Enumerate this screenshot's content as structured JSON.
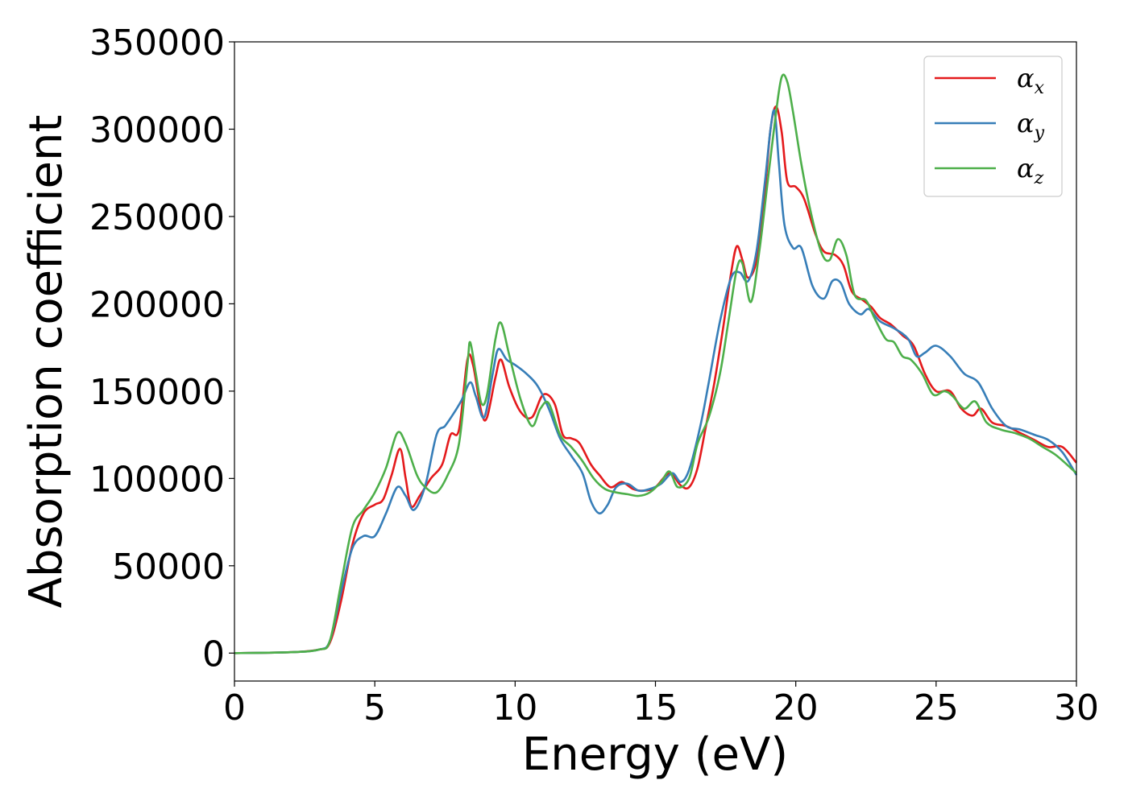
{
  "chart_data": {
    "type": "line",
    "title": "",
    "xlabel": "Energy (eV)",
    "ylabel": "Absorption coefficient",
    "xlim": [
      0,
      30
    ],
    "ylim": [
      -16000,
      350000
    ],
    "xticks": [
      0,
      5,
      10,
      15,
      20,
      25,
      30
    ],
    "yticks": [
      0,
      50000,
      100000,
      150000,
      200000,
      250000,
      300000,
      350000
    ],
    "grid": false,
    "legend_position": "top-right",
    "series": [
      {
        "name": "α_x",
        "color": "#e41a1c",
        "points": [
          [
            0,
            0
          ],
          [
            2,
            500
          ],
          [
            3,
            2000
          ],
          [
            3.4,
            6000
          ],
          [
            3.8,
            30000
          ],
          [
            4.2,
            62000
          ],
          [
            4.6,
            80000
          ],
          [
            5,
            85000
          ],
          [
            5.3,
            88000
          ],
          [
            5.6,
            102000
          ],
          [
            5.9,
            117000
          ],
          [
            6.1,
            100000
          ],
          [
            6.3,
            84000
          ],
          [
            6.6,
            90000
          ],
          [
            7,
            100000
          ],
          [
            7.4,
            108000
          ],
          [
            7.7,
            125000
          ],
          [
            8,
            128000
          ],
          [
            8.3,
            168000
          ],
          [
            8.5,
            165000
          ],
          [
            8.8,
            138000
          ],
          [
            9,
            135000
          ],
          [
            9.3,
            158000
          ],
          [
            9.5,
            168000
          ],
          [
            9.8,
            152000
          ],
          [
            10.2,
            138000
          ],
          [
            10.6,
            135000
          ],
          [
            11,
            148000
          ],
          [
            11.4,
            143000
          ],
          [
            11.7,
            125000
          ],
          [
            12,
            123000
          ],
          [
            12.3,
            120000
          ],
          [
            12.7,
            108000
          ],
          [
            13,
            102000
          ],
          [
            13.4,
            95000
          ],
          [
            13.8,
            98000
          ],
          [
            14.2,
            94000
          ],
          [
            14.6,
            93000
          ],
          [
            15,
            95000
          ],
          [
            15.5,
            103000
          ],
          [
            15.9,
            96000
          ],
          [
            16.2,
            95000
          ],
          [
            16.5,
            106000
          ],
          [
            16.8,
            130000
          ],
          [
            17.1,
            155000
          ],
          [
            17.4,
            185000
          ],
          [
            17.7,
            218000
          ],
          [
            17.9,
            233000
          ],
          [
            18.1,
            225000
          ],
          [
            18.3,
            215000
          ],
          [
            18.6,
            225000
          ],
          [
            18.9,
            265000
          ],
          [
            19.1,
            300000
          ],
          [
            19.3,
            313000
          ],
          [
            19.5,
            298000
          ],
          [
            19.7,
            270000
          ],
          [
            20,
            267000
          ],
          [
            20.3,
            260000
          ],
          [
            20.7,
            240000
          ],
          [
            21,
            230000
          ],
          [
            21.4,
            228000
          ],
          [
            21.7,
            222000
          ],
          [
            22,
            207000
          ],
          [
            22.4,
            202000
          ],
          [
            22.7,
            198000
          ],
          [
            23,
            192000
          ],
          [
            23.4,
            188000
          ],
          [
            23.8,
            182000
          ],
          [
            24.2,
            176000
          ],
          [
            24.6,
            160000
          ],
          [
            25,
            150000
          ],
          [
            25.5,
            150000
          ],
          [
            25.9,
            140000
          ],
          [
            26.3,
            136000
          ],
          [
            26.6,
            140000
          ],
          [
            27,
            132000
          ],
          [
            27.5,
            130000
          ],
          [
            28,
            126000
          ],
          [
            28.5,
            122000
          ],
          [
            29,
            118000
          ],
          [
            29.5,
            118000
          ],
          [
            30,
            109000
          ]
        ]
      },
      {
        "name": "α_y",
        "color": "#377eb8",
        "points": [
          [
            0,
            0
          ],
          [
            2,
            500
          ],
          [
            3,
            2000
          ],
          [
            3.4,
            7000
          ],
          [
            3.8,
            35000
          ],
          [
            4.2,
            60000
          ],
          [
            4.6,
            67000
          ],
          [
            5,
            67000
          ],
          [
            5.4,
            80000
          ],
          [
            5.8,
            95000
          ],
          [
            6.1,
            90000
          ],
          [
            6.4,
            82000
          ],
          [
            6.8,
            96000
          ],
          [
            7.2,
            125000
          ],
          [
            7.5,
            130000
          ],
          [
            7.8,
            137000
          ],
          [
            8.1,
            145000
          ],
          [
            8.4,
            155000
          ],
          [
            8.6,
            147000
          ],
          [
            8.9,
            135000
          ],
          [
            9.2,
            160000
          ],
          [
            9.4,
            174000
          ],
          [
            9.7,
            168000
          ],
          [
            10,
            165000
          ],
          [
            10.4,
            160000
          ],
          [
            10.8,
            153000
          ],
          [
            11.2,
            140000
          ],
          [
            11.6,
            123000
          ],
          [
            12,
            113000
          ],
          [
            12.4,
            103000
          ],
          [
            12.7,
            87000
          ],
          [
            13,
            80000
          ],
          [
            13.3,
            85000
          ],
          [
            13.6,
            95000
          ],
          [
            14,
            97000
          ],
          [
            14.4,
            93000
          ],
          [
            14.8,
            94000
          ],
          [
            15.2,
            97000
          ],
          [
            15.6,
            103000
          ],
          [
            15.9,
            98000
          ],
          [
            16.2,
            105000
          ],
          [
            16.6,
            130000
          ],
          [
            16.9,
            155000
          ],
          [
            17.3,
            190000
          ],
          [
            17.7,
            215000
          ],
          [
            18,
            218000
          ],
          [
            18.3,
            213000
          ],
          [
            18.6,
            230000
          ],
          [
            18.9,
            270000
          ],
          [
            19.1,
            300000
          ],
          [
            19.25,
            310000
          ],
          [
            19.4,
            280000
          ],
          [
            19.6,
            245000
          ],
          [
            19.9,
            232000
          ],
          [
            20.2,
            232000
          ],
          [
            20.6,
            210000
          ],
          [
            21,
            203000
          ],
          [
            21.3,
            213000
          ],
          [
            21.6,
            212000
          ],
          [
            21.9,
            200000
          ],
          [
            22.3,
            194000
          ],
          [
            22.6,
            197000
          ],
          [
            23,
            190000
          ],
          [
            23.5,
            186000
          ],
          [
            24,
            180000
          ],
          [
            24.3,
            170000
          ],
          [
            24.6,
            172000
          ],
          [
            25,
            176000
          ],
          [
            25.5,
            170000
          ],
          [
            26,
            160000
          ],
          [
            26.5,
            155000
          ],
          [
            27,
            140000
          ],
          [
            27.5,
            130000
          ],
          [
            28,
            128000
          ],
          [
            28.5,
            125000
          ],
          [
            29,
            122000
          ],
          [
            29.5,
            115000
          ],
          [
            30,
            102000
          ]
        ]
      },
      {
        "name": "α_z",
        "color": "#4daf4a",
        "points": [
          [
            0,
            0
          ],
          [
            2,
            500
          ],
          [
            3,
            2000
          ],
          [
            3.4,
            7000
          ],
          [
            3.8,
            40000
          ],
          [
            4.2,
            72000
          ],
          [
            4.6,
            82000
          ],
          [
            5,
            92000
          ],
          [
            5.4,
            106000
          ],
          [
            5.8,
            126000
          ],
          [
            6.1,
            120000
          ],
          [
            6.5,
            102000
          ],
          [
            6.8,
            95000
          ],
          [
            7.2,
            92000
          ],
          [
            7.6,
            102000
          ],
          [
            8,
            120000
          ],
          [
            8.3,
            165000
          ],
          [
            8.4,
            178000
          ],
          [
            8.6,
            160000
          ],
          [
            8.8,
            143000
          ],
          [
            9,
            148000
          ],
          [
            9.3,
            180000
          ],
          [
            9.5,
            189000
          ],
          [
            9.8,
            170000
          ],
          [
            10.2,
            145000
          ],
          [
            10.6,
            130000
          ],
          [
            10.9,
            140000
          ],
          [
            11.2,
            143000
          ],
          [
            11.6,
            125000
          ],
          [
            12,
            118000
          ],
          [
            12.4,
            110000
          ],
          [
            12.8,
            100000
          ],
          [
            13.2,
            94000
          ],
          [
            13.6,
            92000
          ],
          [
            14,
            91000
          ],
          [
            14.4,
            90000
          ],
          [
            14.8,
            92000
          ],
          [
            15.2,
            98000
          ],
          [
            15.5,
            104000
          ],
          [
            15.8,
            95000
          ],
          [
            16.2,
            100000
          ],
          [
            16.5,
            120000
          ],
          [
            16.9,
            135000
          ],
          [
            17.3,
            160000
          ],
          [
            17.6,
            190000
          ],
          [
            17.9,
            220000
          ],
          [
            18.1,
            223000
          ],
          [
            18.4,
            201000
          ],
          [
            18.7,
            230000
          ],
          [
            19,
            270000
          ],
          [
            19.3,
            310000
          ],
          [
            19.5,
            330000
          ],
          [
            19.7,
            327000
          ],
          [
            19.9,
            310000
          ],
          [
            20.2,
            280000
          ],
          [
            20.5,
            255000
          ],
          [
            20.9,
            230000
          ],
          [
            21.2,
            225000
          ],
          [
            21.5,
            237000
          ],
          [
            21.8,
            228000
          ],
          [
            22.1,
            205000
          ],
          [
            22.5,
            202000
          ],
          [
            22.8,
            192000
          ],
          [
            23.2,
            180000
          ],
          [
            23.5,
            178000
          ],
          [
            23.8,
            170000
          ],
          [
            24.1,
            168000
          ],
          [
            24.5,
            160000
          ],
          [
            24.9,
            148000
          ],
          [
            25.3,
            150000
          ],
          [
            25.6,
            147000
          ],
          [
            26,
            140000
          ],
          [
            26.4,
            144000
          ],
          [
            26.8,
            132000
          ],
          [
            27.3,
            128000
          ],
          [
            27.8,
            126000
          ],
          [
            28.3,
            123000
          ],
          [
            28.8,
            118000
          ],
          [
            29.3,
            113000
          ],
          [
            30,
            103000
          ]
        ]
      }
    ]
  }
}
